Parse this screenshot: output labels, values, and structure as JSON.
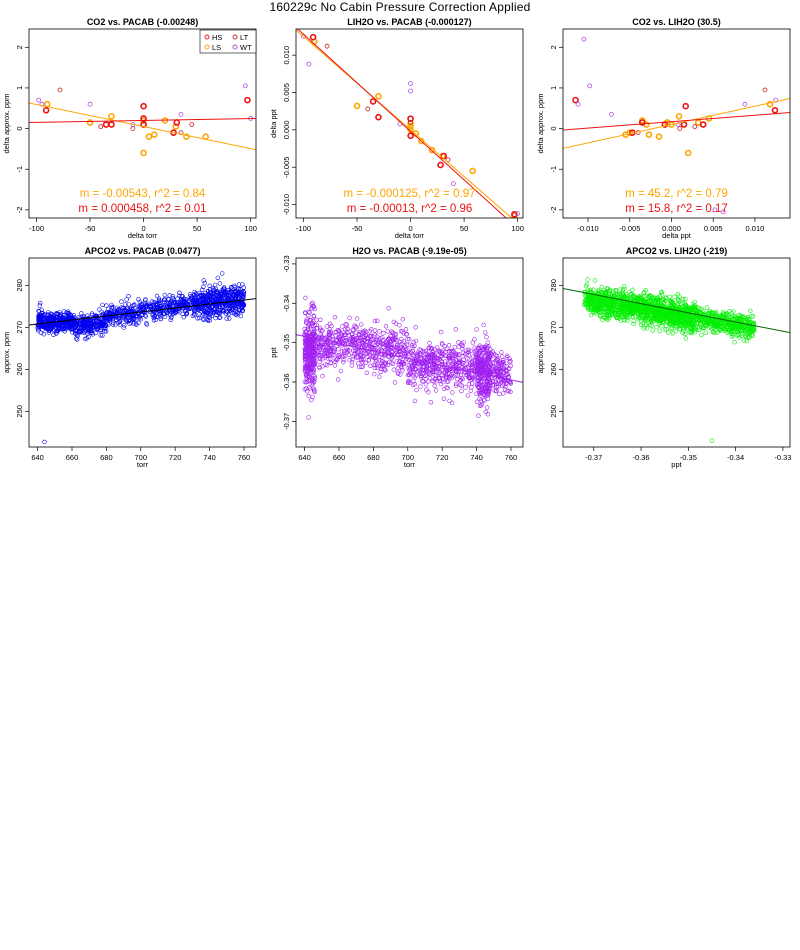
{
  "figure": {
    "title": "160229c   No Cabin Pressure Correction Applied"
  },
  "colors": {
    "HS": "#ee1111",
    "LS": "#ffa500",
    "LT": "#cc2222",
    "WT": "#b050e0",
    "fit_LS": "#ffa500",
    "fit_HS": "#ee1111",
    "blue": "#0000ee",
    "purple": "#a020f0",
    "green": "#00ee00",
    "darkgreen": "#006400",
    "axis": "#000000"
  },
  "chart_data": [
    {
      "id": "co2-vs-pacab",
      "type": "scatter",
      "title": "CO2 vs. PACAB (-0.00248)",
      "xlabel": "delta torr",
      "ylabel": "delta approx. ppm",
      "xlim": [
        -107,
        105
      ],
      "ylim": [
        -2.2,
        2.45
      ],
      "xticks": [
        -100,
        -50,
        0,
        50,
        100
      ],
      "xtick_labels": [
        "-100",
        "-50",
        "0",
        "50",
        "100"
      ],
      "yticks": [
        -2,
        -1,
        0,
        1,
        2
      ],
      "ytick_labels": [
        "-2",
        "-1",
        "0",
        "1",
        "2"
      ],
      "legend": {
        "position": "top-right",
        "entries": [
          {
            "label": "HS",
            "color": "#ee1111"
          },
          {
            "label": "LT",
            "color": "#cc2222"
          },
          {
            "label": "LS",
            "color": "#ffa500"
          },
          {
            "label": "WT",
            "color": "#b050e0"
          }
        ]
      },
      "series": [
        {
          "name": "LS",
          "color": "#ffa500",
          "thick": true,
          "points": [
            [
              -90,
              0.6
            ],
            [
              -50,
              0.15
            ],
            [
              -30,
              0.3
            ],
            [
              0,
              0.2
            ],
            [
              0,
              0.1
            ],
            [
              5,
              -0.2
            ],
            [
              10,
              -0.15
            ],
            [
              20,
              0.2
            ],
            [
              30,
              0.05
            ],
            [
              40,
              -0.2
            ],
            [
              58,
              -0.2
            ],
            [
              0,
              -0.6
            ]
          ]
        },
        {
          "name": "HS",
          "color": "#ee1111",
          "thick": true,
          "points": [
            [
              -91,
              0.45
            ],
            [
              -35,
              0.1
            ],
            [
              -30,
              0.1
            ],
            [
              0,
              0.55
            ],
            [
              0,
              0.25
            ],
            [
              28,
              -0.1
            ],
            [
              31,
              0.15
            ],
            [
              97,
              0.7
            ],
            [
              0,
              0.1
            ]
          ]
        },
        {
          "name": "LT",
          "color": "#cc2222",
          "thick": false,
          "points": [
            [
              -78,
              0.95
            ],
            [
              -40,
              0.05
            ],
            [
              -10,
              0.0
            ],
            [
              35,
              -0.1
            ],
            [
              45,
              0.1
            ]
          ]
        },
        {
          "name": "WT",
          "color": "#b050e0",
          "thick": false,
          "points": [
            [
              -98,
              0.7
            ],
            [
              -95,
              0.6
            ],
            [
              -50,
              0.6
            ],
            [
              -10,
              0.1
            ],
            [
              95,
              1.05
            ],
            [
              100,
              0.25
            ],
            [
              35,
              0.35
            ]
          ]
        }
      ],
      "fits": [
        {
          "name": "LS",
          "color": "#ffa500",
          "slope": -0.00543,
          "intercept": 0.05
        },
        {
          "name": "HS",
          "color": "#ee1111",
          "slope": 0.000458,
          "intercept": 0.2
        }
      ],
      "annotations": [
        {
          "text": "m = -0.00543, r^2 = 0.84",
          "color": "#ffa500",
          "anchor": "upper"
        },
        {
          "text": "m = 0.000458, r^2 = 0.01",
          "color": "#ee1111",
          "anchor": "lower"
        }
      ]
    },
    {
      "id": "lih2o-vs-pacab",
      "type": "scatter",
      "title": "LIH2O vs. PACAB (-0.000127)",
      "xlabel": "delta torr",
      "ylabel": "delta ppt",
      "xlim": [
        -107,
        105
      ],
      "ylim": [
        -0.0118,
        0.0135
      ],
      "xticks": [
        -100,
        -50,
        0,
        50,
        100
      ],
      "xtick_labels": [
        "-100",
        "-50",
        "0",
        "50",
        "100"
      ],
      "yticks": [
        -0.01,
        -0.005,
        0,
        0.005,
        0.01
      ],
      "ytick_labels": [
        "-0.010",
        "-0.005",
        "0.000",
        "0.005",
        "0.010"
      ],
      "series": [
        {
          "name": "LS",
          "color": "#ffa500",
          "thick": true,
          "points": [
            [
              -90,
              0.0118
            ],
            [
              -50,
              0.0032
            ],
            [
              -30,
              0.0045
            ],
            [
              0,
              0.0009
            ],
            [
              0,
              0.0005
            ],
            [
              10,
              -0.0015
            ],
            [
              20,
              -0.0027
            ],
            [
              30,
              -0.0035
            ],
            [
              58,
              -0.0055
            ],
            [
              97,
              -0.0115
            ],
            [
              0,
              0.0
            ],
            [
              5,
              -0.0005
            ]
          ]
        },
        {
          "name": "HS",
          "color": "#ee1111",
          "thick": true,
          "points": [
            [
              -91,
              0.0124
            ],
            [
              -35,
              0.0038
            ],
            [
              -30,
              0.0017
            ],
            [
              0,
              0.0015
            ],
            [
              0,
              -0.0008
            ],
            [
              28,
              -0.0047
            ],
            [
              31,
              -0.0035
            ],
            [
              97,
              -0.0113
            ]
          ]
        },
        {
          "name": "LT",
          "color": "#cc2222",
          "thick": false,
          "points": [
            [
              -78,
              0.0112
            ],
            [
              -40,
              0.0028
            ],
            [
              0,
              0.001
            ],
            [
              35,
              -0.004
            ]
          ]
        },
        {
          "name": "WT",
          "color": "#b050e0",
          "thick": false,
          "points": [
            [
              -100,
              0.0125
            ],
            [
              -95,
              0.0088
            ],
            [
              0,
              0.0062
            ],
            [
              0,
              0.0052
            ],
            [
              100,
              -0.0112
            ],
            [
              40,
              -0.0072
            ],
            [
              -10,
              0.0008
            ]
          ]
        }
      ],
      "fits": [
        {
          "name": "LS",
          "color": "#ffa500",
          "slope": -0.000125,
          "intercept": 0.0
        },
        {
          "name": "HS",
          "color": "#ee1111",
          "slope": -0.00013,
          "intercept": -0.0002
        }
      ],
      "annotations": [
        {
          "text": "m = -0.000125, r^2 = 0.97",
          "color": "#ffa500",
          "anchor": "upper"
        },
        {
          "text": "m = -0.00013, r^2 = 0.96",
          "color": "#ee1111",
          "anchor": "lower"
        }
      ]
    },
    {
      "id": "co2-vs-lih2o",
      "type": "scatter",
      "title": "CO2 vs. LIH2O (30.5)",
      "xlabel": "delta ppt",
      "ylabel": "delta approx. ppm",
      "xlim": [
        -0.013,
        0.0142
      ],
      "ylim": [
        -2.2,
        2.45
      ],
      "xticks": [
        -0.01,
        -0.005,
        0,
        0.005,
        0.01
      ],
      "xtick_labels": [
        "-0.010",
        "-0.005",
        "0.000",
        "0.005",
        "0.010"
      ],
      "yticks": [
        -2,
        -1,
        0,
        1,
        2
      ],
      "ytick_labels": [
        "-2",
        "-1",
        "0",
        "1",
        "2"
      ],
      "series": [
        {
          "name": "LS",
          "color": "#ffa500",
          "thick": true,
          "points": [
            [
              0.0118,
              0.6
            ],
            [
              -0.005,
              -0.1
            ],
            [
              -0.003,
              0.1
            ],
            [
              0.0009,
              0.3
            ],
            [
              0,
              0.1
            ],
            [
              -0.0015,
              -0.2
            ],
            [
              -0.0027,
              -0.15
            ],
            [
              -0.0035,
              0.2
            ],
            [
              -0.0055,
              -0.15
            ],
            [
              -0.0005,
              0.15
            ],
            [
              0.0045,
              0.25
            ],
            [
              0.0032,
              0.15
            ],
            [
              0.002,
              -0.6
            ]
          ]
        },
        {
          "name": "HS",
          "color": "#ee1111",
          "thick": true,
          "points": [
            [
              -0.0115,
              0.7
            ],
            [
              0.0017,
              0.55
            ],
            [
              0.0015,
              0.1
            ],
            [
              -0.0035,
              0.15
            ],
            [
              0.0038,
              0.1
            ],
            [
              0.0124,
              0.45
            ],
            [
              -0.0047,
              -0.1
            ],
            [
              -0.0008,
              0.1
            ]
          ]
        },
        {
          "name": "LT",
          "color": "#cc2222",
          "thick": false,
          "points": [
            [
              0.0112,
              0.95
            ],
            [
              0.0028,
              0.05
            ],
            [
              -0.004,
              -0.1
            ],
            [
              0.001,
              0.0
            ]
          ]
        },
        {
          "name": "WT",
          "color": "#b050e0",
          "thick": false,
          "points": [
            [
              -0.0105,
              2.2
            ],
            [
              -0.0112,
              0.6
            ],
            [
              -0.0098,
              1.05
            ],
            [
              0.0125,
              0.7
            ],
            [
              0.0088,
              0.6
            ],
            [
              0.0062,
              -2.05
            ],
            [
              0.0052,
              -2.0
            ],
            [
              -0.0072,
              0.35
            ],
            [
              0.0008,
              0.1
            ]
          ]
        }
      ],
      "fits": [
        {
          "name": "LS",
          "color": "#ffa500",
          "slope": 45.2,
          "intercept": 0.1
        },
        {
          "name": "HS",
          "color": "#ee1111",
          "slope": 15.8,
          "intercept": 0.17
        }
      ],
      "annotations": [
        {
          "text": "m = 45.2, r^2 = 0.79",
          "color": "#ffa500",
          "anchor": "upper"
        },
        {
          "text": "m = 15.8, r^2 = 0.17",
          "color": "#ee1111",
          "anchor": "lower"
        }
      ]
    },
    {
      "id": "apco2-vs-pacab",
      "type": "scatter",
      "title": "APCO2 vs. PACAB (0.0477)",
      "xlabel": "torr",
      "ylabel": "approx. ppm",
      "xlim": [
        635,
        767
      ],
      "ylim": [
        241.5,
        286.5
      ],
      "xticks": [
        640,
        660,
        680,
        700,
        720,
        740,
        760
      ],
      "xtick_labels": [
        "640",
        "660",
        "680",
        "700",
        "720",
        "740",
        "760"
      ],
      "yticks": [
        250,
        260,
        270,
        280
      ],
      "ytick_labels": [
        "250",
        "260",
        "270",
        "280"
      ],
      "cloud": {
        "color": "#0000ee",
        "count": 1500,
        "seed": 11,
        "segments": [
          {
            "x0": 640,
            "x1": 662,
            "y0": 271.5,
            "y1": 271.0,
            "spread": 2.2,
            "weight": 0.25
          },
          {
            "x0": 662,
            "x1": 680,
            "y0": 270.0,
            "y1": 271.5,
            "spread": 2.6,
            "weight": 0.15
          },
          {
            "x0": 680,
            "x1": 735,
            "y0": 272.5,
            "y1": 276.0,
            "spread": 2.4,
            "weight": 0.32
          },
          {
            "x0": 735,
            "x1": 760,
            "y0": 276.0,
            "y1": 276.5,
            "spread": 3.2,
            "weight": 0.28
          }
        ],
        "outliers": [
          [
            644,
            242.7
          ]
        ]
      },
      "fits": [
        {
          "name": "all",
          "color": "#000000",
          "slope": 0.0477,
          "intercept": 240.25
        }
      ]
    },
    {
      "id": "h2o-vs-pacab",
      "type": "scatter",
      "title": "H2O vs. PACAB (-9.19e-05)",
      "xlabel": "torr",
      "ylabel": "ppt",
      "xlim": [
        635,
        767
      ],
      "ylim": [
        -0.3765,
        -0.3285
      ],
      "xticks": [
        640,
        660,
        680,
        700,
        720,
        740,
        760
      ],
      "xtick_labels": [
        "640",
        "660",
        "680",
        "700",
        "720",
        "740",
        "760"
      ],
      "yticks": [
        -0.37,
        -0.36,
        -0.35,
        -0.34,
        -0.33
      ],
      "ytick_labels": [
        "-0.37",
        "-0.36",
        "-0.35",
        "-0.34",
        "-0.33"
      ],
      "cloud": {
        "color": "#a020f0",
        "count": 1700,
        "seed": 23,
        "segments": [
          {
            "x0": 640,
            "x1": 646,
            "y0": -0.352,
            "y1": -0.352,
            "spread": 0.0085,
            "weight": 0.18
          },
          {
            "x0": 646,
            "x1": 700,
            "y0": -0.35,
            "y1": -0.352,
            "spread": 0.0055,
            "weight": 0.32
          },
          {
            "x0": 700,
            "x1": 740,
            "y0": -0.355,
            "y1": -0.357,
            "spread": 0.0055,
            "weight": 0.26
          },
          {
            "x0": 740,
            "x1": 748,
            "y0": -0.356,
            "y1": -0.358,
            "spread": 0.0075,
            "weight": 0.16
          },
          {
            "x0": 748,
            "x1": 760,
            "y0": -0.357,
            "y1": -0.359,
            "spread": 0.0045,
            "weight": 0.08
          }
        ],
        "outliers": []
      },
      "fits": [
        {
          "name": "all",
          "color": "#a020f0",
          "slope": -9.19e-05,
          "intercept": -0.2896
        }
      ]
    },
    {
      "id": "apco2-vs-lih2o",
      "type": "scatter",
      "title": "APCO2 vs. LIH2O (-219)",
      "xlabel": "ppt",
      "ylabel": "approx. ppm",
      "xlim": [
        -0.3765,
        -0.3285
      ],
      "ylim": [
        241.5,
        286.5
      ],
      "xticks": [
        -0.37,
        -0.36,
        -0.35,
        -0.34,
        -0.33
      ],
      "xtick_labels": [
        "-0.37",
        "-0.36",
        "-0.35",
        "-0.34",
        "-0.33"
      ],
      "yticks": [
        250,
        260,
        270,
        280
      ],
      "ytick_labels": [
        "250",
        "260",
        "270",
        "280"
      ],
      "cloud": {
        "color": "#00ee00",
        "count": 1700,
        "seed": 37,
        "segments": [
          {
            "x0": -0.372,
            "x1": -0.36,
            "y0": 276.5,
            "y1": 274.5,
            "spread": 3.0,
            "weight": 0.35
          },
          {
            "x0": -0.36,
            "x1": -0.348,
            "y0": 274.5,
            "y1": 272.0,
            "spread": 3.2,
            "weight": 0.42
          },
          {
            "x0": -0.348,
            "x1": -0.336,
            "y0": 272.0,
            "y1": 270.0,
            "spread": 2.6,
            "weight": 0.23
          }
        ],
        "outliers": [
          [
            -0.345,
            243.0
          ]
        ]
      },
      "fits": [
        {
          "name": "all",
          "color": "#006400",
          "slope": -219,
          "intercept": 196.8
        }
      ]
    }
  ]
}
